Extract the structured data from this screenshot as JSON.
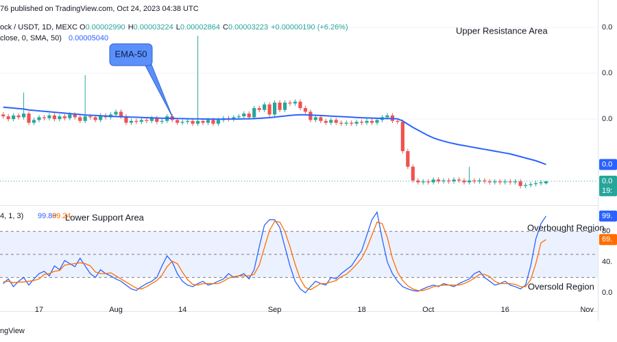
{
  "header": {
    "published": "76 published on TradingView.com, Oct 24, 2023 04:38 UTC",
    "symbol": "ock / USDT, 1D, MEXC",
    "ohlc": [
      {
        "key": "O",
        "value": "0.00002990"
      },
      {
        "key": "H",
        "value": "0.00003224"
      },
      {
        "key": "L",
        "value": "0.00002864"
      },
      {
        "key": "C",
        "value": "0.00003223"
      }
    ],
    "change": "+0.00000190 (+6.26%)",
    "ema_legend": "close, 0, SMA, 50)",
    "ema_value": "0.00005040",
    "stoch_legend": "4, 1, 3)",
    "footer": "ngView"
  },
  "chart_data": [
    {
      "type": "candlestick",
      "categories": [
        null,
        null,
        null,
        null,
        null,
        null,
        null,
        "17",
        null,
        null,
        null,
        null,
        null,
        null,
        null,
        null,
        null,
        null,
        null,
        null,
        null,
        null,
        "Aug",
        null,
        null,
        null,
        null,
        null,
        null,
        null,
        null,
        null,
        null,
        null,
        null,
        "14",
        null,
        null,
        null,
        null,
        null,
        null,
        null,
        null,
        null,
        null,
        null,
        null,
        null,
        null,
        null,
        null,
        null,
        "Sep",
        null,
        null,
        null,
        null,
        null,
        null,
        null,
        null,
        null,
        null,
        null,
        null,
        null,
        null,
        null,
        null,
        "18",
        null,
        null,
        null,
        null,
        null,
        null,
        null,
        null,
        null,
        null,
        null,
        null,
        "Oct",
        null,
        null,
        null,
        null,
        null,
        null,
        null,
        null,
        null,
        null,
        null,
        null,
        null,
        null,
        "16",
        null,
        null,
        null,
        null,
        null,
        null,
        null,
        null,
        null,
        null,
        null,
        null,
        null,
        null,
        null,
        "Nov",
        null,
        null
      ],
      "open": [
        0.000105,
        0.000103,
        0.0001,
        0.000104,
        0.000102,
        0.000106,
        9.6e-05,
        9.9e-05,
        0.000102,
        0.000101,
        0.000104,
        0.0001,
        0.000103,
        0.000101,
        0.000105,
        0.000102,
        9.8e-05,
        0.000103,
        0.000102,
        9.9e-05,
        0.000104,
        0.000102,
        0.000105,
        0.000108,
        0.000103,
        9.6e-05,
        9.8e-05,
        9.7e-05,
        9.9e-05,
        9.8e-05,
        0.000101,
        9.7e-05,
        9.8e-05,
        0.000103,
        9.9e-05,
        9.6e-05,
        9.7e-05,
        9.8e-05,
        9.5e-05,
        9.8e-05,
        9.6e-05,
        9.9e-05,
        9.5e-05,
        9.9e-05,
        0.000101,
        0.0001,
        0.000102,
        0.000103,
        0.000106,
        0.000102,
        0.000112,
        0.00011,
        0.000116,
        0.000105,
        0.000118,
        0.00011,
        0.000118,
        0.000117,
        0.000119,
        0.000112,
        0.000108,
        9.9e-05,
        0.000102,
        9.8e-05,
        9.6e-05,
        9.9e-05,
        9.6e-05,
        9.5e-05,
        9.6e-05,
        9.5e-05,
        9.7e-05,
        9.6e-05,
        9.8e-05,
        9.6e-05,
        9.9e-05,
        0.000102,
        0.000104,
        9.8e-05,
        9.7e-05,
        6.5e-05,
        4.8e-05,
        3.3e-05,
        3.1e-05,
        3.2e-05,
        3.1e-05,
        3.4e-05,
        3.2e-05,
        3.3e-05,
        3.2e-05,
        3.4e-05,
        3.3e-05,
        3.1e-05,
        3.3e-05,
        3.2e-05,
        3.3e-05,
        3.2e-05,
        3.1e-05,
        3.2e-05,
        3.1e-05,
        3.2e-05,
        3.1e-05,
        3.2e-05,
        2.7e-05,
        2.8e-05,
        2.9e-05,
        3e-05,
        2.99e-05,
        null,
        null,
        null,
        null,
        null,
        null,
        null,
        null,
        null,
        null
      ],
      "high": [
        0.0001075,
        0.0001055,
        0.0001065,
        0.0001065,
        0.000129,
        0.0001085,
        0.0001015,
        0.0001045,
        0.0001045,
        0.0001065,
        0.0001065,
        0.0001055,
        0.0001055,
        0.0001075,
        0.0001075,
        0.0001045,
        0.000148,
        0.0001055,
        0.0001045,
        0.0001065,
        0.0001065,
        0.0001075,
        0.0001105,
        0.0001105,
        0.0001055,
        0.0001005,
        0.0001005,
        0.0001015,
        0.0001015,
        0.0001035,
        0.0001035,
        0.0001005,
        0.0001055,
        0.0001055,
        0.0001015,
        9.95e-05,
        0.0001005,
        0.0001005,
        0.000191,
        0.0001005,
        0.0001015,
        0.0001015,
        0.0001015,
        0.0001035,
        0.0001035,
        0.0001045,
        0.0001055,
        0.0001085,
        0.0001085,
        0.0001145,
        0.0001145,
        0.0001185,
        0.0001185,
        0.0001205,
        0.0001205,
        0.0001205,
        0.0001205,
        0.0001215,
        0.0001215,
        0.0001145,
        0.0001105,
        0.0001045,
        0.0001045,
        0.0001005,
        0.0001015,
        0.0001015,
        9.85e-05,
        9.85e-05,
        9.85e-05,
        9.95e-05,
        9.95e-05,
        0.0001005,
        0.0001005,
        0.0001015,
        0.0001045,
        0.0001065,
        0.0001065,
        0.0001005,
        9.95e-05,
        6.75e-05,
        5.05e-05,
        3.55e-05,
        3.45e-05,
        3.45e-05,
        3.65e-05,
        3.65e-05,
        3.55e-05,
        3.55e-05,
        3.65e-05,
        3.65e-05,
        3.55e-05,
        4.8e-05,
        3.55e-05,
        3.55e-05,
        3.55e-05,
        3.45e-05,
        3.45e-05,
        3.45e-05,
        3.45e-05,
        3.45e-05,
        3.45e-05,
        3.45e-05,
        3.05e-05,
        3.15e-05,
        3.25e-05,
        3.35e-05,
        3.224e-05,
        null,
        null,
        null,
        null,
        null,
        null,
        null,
        null,
        null,
        null
      ],
      "low": [
        0.0001005,
        9.75e-05,
        9.75e-05,
        9.95e-05,
        9.95e-05,
        9.35e-05,
        9.35e-05,
        9.65e-05,
        9.85e-05,
        9.85e-05,
        9.75e-05,
        9.75e-05,
        9.85e-05,
        9.85e-05,
        9.95e-05,
        9.55e-05,
        9.55e-05,
        9.95e-05,
        9.65e-05,
        9.65e-05,
        9.95e-05,
        9.95e-05,
        0.0001025,
        0.0001005,
        9.35e-05,
        9.35e-05,
        9.45e-05,
        9.45e-05,
        9.55e-05,
        9.55e-05,
        9.45e-05,
        9.45e-05,
        9.55e-05,
        9.65e-05,
        9.35e-05,
        9.35e-05,
        9.45e-05,
        9.25e-05,
        9.25e-05,
        9.35e-05,
        9.35e-05,
        9.25e-05,
        9.25e-05,
        9.65e-05,
        9.75e-05,
        9.75e-05,
        9.95e-05,
        0.0001005,
        9.95e-05,
        9.95e-05,
        0.0001075,
        0.0001075,
        0.0001025,
        0.0001025,
        0.0001075,
        0.0001075,
        0.0001145,
        0.0001145,
        0.0001095,
        0.0001055,
        9.65e-05,
        9.65e-05,
        9.55e-05,
        9.35e-05,
        9.35e-05,
        9.35e-05,
        9.25e-05,
        9.25e-05,
        9.25e-05,
        9.25e-05,
        9.35e-05,
        9.35e-05,
        9.35e-05,
        9.35e-05,
        9.65e-05,
        9.95e-05,
        9.55e-05,
        9.45e-05,
        6.25e-05,
        4.55e-05,
        3.05e-05,
        2.85e-05,
        2.85e-05,
        2.85e-05,
        2.85e-05,
        2.95e-05,
        2.95e-05,
        2.95e-05,
        2.95e-05,
        3.05e-05,
        2.85e-05,
        2.85e-05,
        2.95e-05,
        2.95e-05,
        2.95e-05,
        2.85e-05,
        2.85e-05,
        2.85e-05,
        2.85e-05,
        2.85e-05,
        2.85e-05,
        2.45e-05,
        2.45e-05,
        2.55e-05,
        2.65e-05,
        2.75e-05,
        2.864e-05,
        null,
        null,
        null,
        null,
        null,
        null,
        null,
        null,
        null,
        null
      ],
      "close": [
        0.000103,
        0.0001,
        0.000104,
        0.000102,
        0.000106,
        9.6e-05,
        9.9e-05,
        0.000102,
        0.000101,
        0.000104,
        0.0001,
        0.000103,
        0.000101,
        0.000105,
        0.000102,
        9.8e-05,
        0.000103,
        0.000102,
        9.9e-05,
        0.000104,
        0.000102,
        0.000105,
        0.000108,
        0.000103,
        9.6e-05,
        9.8e-05,
        9.7e-05,
        9.9e-05,
        9.8e-05,
        0.000101,
        9.7e-05,
        9.8e-05,
        0.000103,
        9.9e-05,
        9.6e-05,
        9.7e-05,
        9.8e-05,
        9.5e-05,
        9.8e-05,
        9.6e-05,
        9.9e-05,
        9.5e-05,
        9.9e-05,
        0.000101,
        0.0001,
        0.000102,
        0.000103,
        0.000106,
        0.000102,
        0.000112,
        0.00011,
        0.000116,
        0.000105,
        0.000118,
        0.00011,
        0.000118,
        0.000117,
        0.000119,
        0.000112,
        0.000108,
        9.9e-05,
        0.000102,
        9.8e-05,
        9.6e-05,
        9.9e-05,
        9.6e-05,
        9.5e-05,
        9.6e-05,
        9.5e-05,
        9.7e-05,
        9.6e-05,
        9.8e-05,
        9.6e-05,
        9.9e-05,
        0.000102,
        0.000104,
        9.8e-05,
        9.7e-05,
        6.5e-05,
        4.8e-05,
        3.3e-05,
        3.1e-05,
        3.2e-05,
        3.1e-05,
        3.4e-05,
        3.2e-05,
        3.3e-05,
        3.2e-05,
        3.4e-05,
        3.3e-05,
        3.1e-05,
        3.3e-05,
        3.2e-05,
        3.3e-05,
        3.2e-05,
        3.1e-05,
        3.2e-05,
        3.1e-05,
        3.2e-05,
        3.1e-05,
        3.2e-05,
        2.7e-05,
        2.8e-05,
        2.9e-05,
        3e-05,
        3.1e-05,
        3.223e-05,
        null,
        null,
        null,
        null,
        null,
        null,
        null,
        null,
        null,
        null
      ],
      "up_color": "#26a69a",
      "down_color": "#ef5350",
      "overlays": [
        {
          "name": "EMA-50",
          "color": "#2962ff",
          "last_label": "0.0",
          "values": [
            0.000113,
            0.0001125,
            0.000112,
            0.0001115,
            0.000111,
            0.00011,
            0.0001095,
            0.000109,
            0.0001085,
            0.000108,
            0.0001075,
            0.000107,
            0.0001065,
            0.000106,
            0.0001055,
            0.000105,
            0.0001045,
            0.0001042,
            0.000104,
            0.0001037,
            0.0001034,
            0.000103,
            0.0001028,
            0.0001026,
            0.0001024,
            0.0001022,
            0.000102,
            0.0001018,
            0.0001016,
            0.0001014,
            0.0001012,
            0.000101,
            0.0001009,
            0.0001008,
            0.0001006,
            0.0001005,
            0.0001004,
            0.0001003,
            0.0001002,
            0.0001001,
            0.0001,
            0.0001,
            9.99e-05,
            9.99e-05,
            0.0001,
            0.0001,
            0.0001001,
            0.0001002,
            0.0001003,
            0.0001005,
            0.0001008,
            0.0001012,
            0.0001016,
            0.0001022,
            0.0001028,
            0.0001034,
            0.000104,
            0.0001045,
            0.0001047,
            0.0001046,
            0.0001044,
            0.0001042,
            0.0001039,
            0.0001036,
            0.0001033,
            0.000103,
            0.0001027,
            0.0001024,
            0.0001021,
            0.0001018,
            0.0001015,
            0.0001013,
            0.0001011,
            0.0001009,
            0.0001007,
            0.0001006,
            0.0001005,
            0.0001003,
            9.8e-05,
            9.45e-05,
            9.1e-05,
            8.8e-05,
            8.5e-05,
            8.2e-05,
            7.95e-05,
            7.75e-05,
            7.6e-05,
            7.45e-05,
            7.32e-05,
            7.2e-05,
            7.1e-05,
            7e-05,
            6.9e-05,
            6.8e-05,
            6.7e-05,
            6.6e-05,
            6.5e-05,
            6.4e-05,
            6.3e-05,
            6.2e-05,
            6.05e-05,
            5.9e-05,
            5.75e-05,
            5.6e-05,
            5.45e-05,
            5.25e-05,
            5.04e-05,
            null,
            null,
            null,
            null,
            null,
            null,
            null,
            null,
            null,
            null
          ]
        }
      ],
      "last_label": "0.0",
      "countdown": "19:",
      "ylim": [
        6e-06,
        0.00023
      ],
      "yticks": [
        {
          "value": 0.0001,
          "label": "0.0"
        },
        {
          "value": 0.00015,
          "label": "0.0"
        },
        {
          "value": 0.0002,
          "label": "0.0"
        }
      ],
      "grid": true,
      "annotations": [
        "Upper Resistance Area"
      ]
    },
    {
      "type": "line",
      "series": [
        {
          "name": "%K",
          "color": "#2962ff",
          "last_label": "99.",
          "values": [
            12,
            18,
            8,
            15,
            20,
            10,
            18,
            25,
            28,
            22,
            35,
            30,
            42,
            38,
            34,
            45,
            35,
            25,
            20,
            30,
            25,
            22,
            18,
            15,
            10,
            5,
            3,
            8,
            12,
            15,
            20,
            35,
            48,
            40,
            25,
            15,
            10,
            8,
            12,
            15,
            10,
            12,
            15,
            18,
            25,
            20,
            22,
            25,
            18,
            30,
            60,
            88,
            95,
            95,
            85,
            60,
            35,
            15,
            5,
            0,
            8,
            15,
            12,
            10,
            20,
            18,
            25,
            30,
            35,
            45,
            55,
            75,
            95,
            105,
            70,
            40,
            25,
            15,
            8,
            5,
            3,
            2,
            5,
            8,
            10,
            8,
            12,
            10,
            8,
            12,
            15,
            18,
            25,
            28,
            20,
            15,
            10,
            12,
            15,
            10,
            8,
            5,
            10,
            35,
            70,
            90,
            99.89,
            null,
            null,
            null,
            null,
            null,
            null,
            null,
            null,
            null,
            null
          ]
        },
        {
          "name": "%D",
          "color": "#ff6d00",
          "last_label": "69.",
          "values": [
            14,
            15,
            13,
            14,
            14,
            15,
            16,
            18,
            24,
            25,
            28,
            29,
            36,
            37,
            38,
            39,
            38,
            35,
            27,
            25,
            25,
            26,
            22,
            18,
            14,
            10,
            6,
            5,
            8,
            12,
            16,
            23,
            34,
            41,
            38,
            27,
            17,
            11,
            10,
            12,
            12,
            12,
            12,
            15,
            19,
            21,
            22,
            22,
            22,
            24,
            36,
            59,
            81,
            93,
            92,
            80,
            60,
            37,
            18,
            7,
            4,
            8,
            12,
            12,
            14,
            16,
            21,
            24,
            30,
            37,
            45,
            58,
            75,
            92,
            90,
            72,
            45,
            27,
            16,
            9,
            5,
            3,
            3,
            5,
            8,
            9,
            10,
            10,
            10,
            10,
            12,
            15,
            19,
            24,
            24,
            21,
            15,
            12,
            12,
            12,
            11,
            8,
            8,
            17,
            38,
            65,
            69.24,
            null,
            null,
            null,
            null,
            null,
            null,
            null,
            null,
            null,
            null
          ]
        }
      ],
      "ylim": [
        -24,
        114
      ],
      "yticks": [
        80,
        {
          "value": 40,
          "label": "40."
        },
        {
          "value": 0,
          "label": "0.0"
        }
      ],
      "bands": [
        80,
        50,
        20
      ],
      "band_fill": "#2962ff",
      "annotations": [
        "Lower Support Area",
        "Overbought Region",
        "Oversold Region"
      ]
    }
  ]
}
